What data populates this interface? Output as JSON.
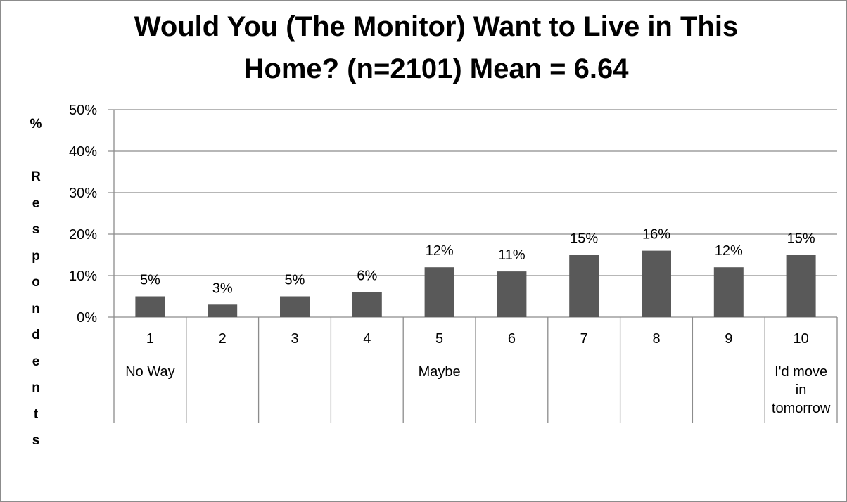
{
  "chart_data": {
    "type": "bar",
    "title": "Would You (The Monitor) Want to Live in This Home? (n=2101) Mean = 6.64",
    "title_lines": [
      "Would You (The Monitor) Want to Live in This",
      "Home? (n=2101) Mean = 6.64"
    ],
    "ylabel": "% Respondents",
    "ylabel_chars": [
      "%",
      "",
      "R",
      "e",
      "s",
      "p",
      "o",
      "n",
      "d",
      "e",
      "n",
      "t",
      "s"
    ],
    "xlabel": "",
    "categories": [
      "1",
      "2",
      "3",
      "4",
      "5",
      "6",
      "7",
      "8",
      "9",
      "10"
    ],
    "category_sublabels": [
      [
        "No Way"
      ],
      [],
      [],
      [],
      [
        "Maybe"
      ],
      [],
      [],
      [],
      [],
      [
        "I'd move",
        "in",
        "tomorrow"
      ]
    ],
    "values": [
      5,
      3,
      5,
      6,
      12,
      11,
      15,
      16,
      12,
      15
    ],
    "data_labels": [
      "5%",
      "3%",
      "5%",
      "6%",
      "12%",
      "11%",
      "15%",
      "16%",
      "12%",
      "15%"
    ],
    "y_ticks": [
      0,
      10,
      20,
      30,
      40,
      50
    ],
    "y_tick_labels": [
      "0%",
      "10%",
      "20%",
      "30%",
      "40%",
      "50%"
    ],
    "ylim": [
      0,
      50
    ],
    "grid": true,
    "legend": "none",
    "bar_color": "#595959",
    "grid_color": "#8c8c8c"
  }
}
